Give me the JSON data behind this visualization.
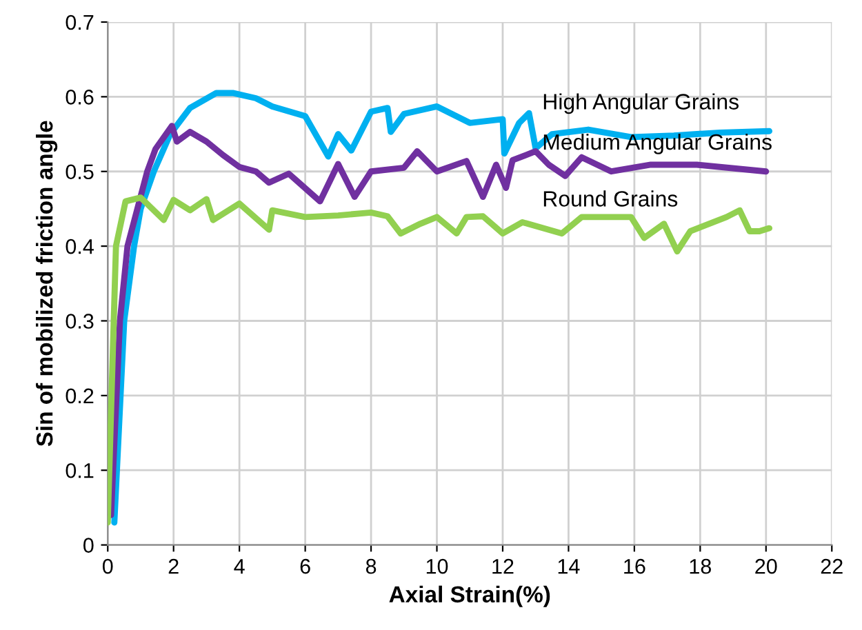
{
  "chart_data": {
    "type": "line",
    "xlabel": "Axial Strain(%)",
    "ylabel": "Sin of mobilized friction angle",
    "xlim": [
      0,
      22
    ],
    "ylim": [
      0,
      0.7
    ],
    "xticks": [
      0,
      2,
      4,
      6,
      8,
      10,
      12,
      14,
      16,
      18,
      20,
      22
    ],
    "yticks": [
      0,
      0.1,
      0.2,
      0.3,
      0.4,
      0.5,
      0.6,
      0.7
    ],
    "grid": true,
    "legend": false,
    "line_style": "solid",
    "marker": "none",
    "series": [
      {
        "name": "High Angular Grains",
        "color": "#00b0f0",
        "x": [
          0.2,
          0.5,
          0.8,
          1.0,
          1.4,
          1.9,
          2.5,
          3.3,
          3.8,
          4.5,
          5.0,
          6.0,
          6.7,
          7.0,
          7.4,
          8.0,
          8.5,
          8.6,
          9.0,
          10.0,
          11.0,
          12.0,
          12.05,
          12.5,
          12.8,
          13.0,
          13.5,
          14.6,
          15.9,
          17.2,
          18.6,
          20.1
        ],
        "values": [
          0.03,
          0.3,
          0.4,
          0.45,
          0.5,
          0.55,
          0.585,
          0.605,
          0.605,
          0.598,
          0.587,
          0.574,
          0.52,
          0.55,
          0.528,
          0.58,
          0.585,
          0.553,
          0.577,
          0.587,
          0.565,
          0.57,
          0.524,
          0.565,
          0.578,
          0.531,
          0.55,
          0.556,
          0.546,
          0.548,
          0.552,
          0.554
        ]
      },
      {
        "name": "Medium Angular Grains",
        "color": "#7030a0",
        "x": [
          0.1,
          0.37,
          0.6,
          0.9,
          1.2,
          1.45,
          1.95,
          2.1,
          2.5,
          3.0,
          3.5,
          4.0,
          4.5,
          4.9,
          5.5,
          6.45,
          7.0,
          7.5,
          8.0,
          9.0,
          9.4,
          10.0,
          10.9,
          11.4,
          11.8,
          12.1,
          12.3,
          13.0,
          13.4,
          13.9,
          14.4,
          15.3,
          16.5,
          17.9,
          19.3,
          20.0
        ],
        "values": [
          0.04,
          0.3,
          0.4,
          0.45,
          0.5,
          0.53,
          0.561,
          0.54,
          0.553,
          0.54,
          0.522,
          0.506,
          0.5,
          0.485,
          0.497,
          0.46,
          0.51,
          0.466,
          0.5,
          0.505,
          0.527,
          0.5,
          0.514,
          0.466,
          0.509,
          0.478,
          0.515,
          0.527,
          0.509,
          0.494,
          0.519,
          0.5,
          0.509,
          0.509,
          0.503,
          0.5
        ]
      },
      {
        "name": "Round Grains",
        "color": "#92d050",
        "x": [
          0.0,
          0.25,
          0.54,
          1.0,
          1.7,
          2.0,
          2.5,
          3.0,
          3.2,
          4.0,
          4.9,
          5.0,
          6.0,
          7.0,
          8.0,
          8.5,
          8.9,
          9.5,
          10.0,
          10.6,
          10.9,
          11.4,
          12.0,
          12.6,
          13.8,
          14.4,
          15.9,
          16.3,
          16.9,
          17.3,
          17.7,
          18.8,
          19.2,
          19.5,
          19.8,
          20.1
        ],
        "values": [
          0.03,
          0.4,
          0.46,
          0.465,
          0.435,
          0.462,
          0.448,
          0.463,
          0.435,
          0.457,
          0.422,
          0.448,
          0.439,
          0.441,
          0.445,
          0.44,
          0.417,
          0.43,
          0.439,
          0.417,
          0.439,
          0.44,
          0.417,
          0.432,
          0.417,
          0.439,
          0.439,
          0.411,
          0.43,
          0.393,
          0.42,
          0.439,
          0.448,
          0.42,
          0.42,
          0.424
        ]
      }
    ]
  }
}
